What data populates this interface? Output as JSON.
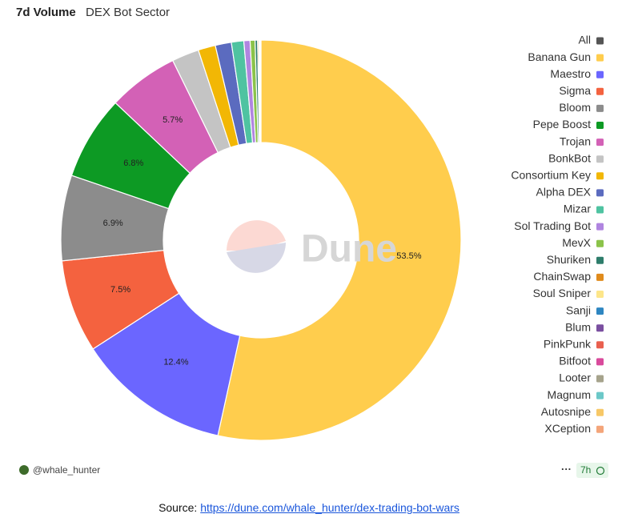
{
  "chart_data": {
    "type": "pie",
    "title": "7d Volume",
    "subtitle": "DEX Bot Sector",
    "watermark": "Dune",
    "author": "@whale_hunter",
    "age": "7h",
    "source_label": "Source:",
    "source_link": "https://dune.com/whale_hunter/dex-trading-bot-wars",
    "legend_all": {
      "name": "All",
      "color": "#555555"
    },
    "series": [
      {
        "name": "Banana Gun",
        "color": "#ffcd4d",
        "value": 53.5,
        "value_label": "53.5%"
      },
      {
        "name": "Maestro",
        "color": "#6b66ff",
        "value": 12.4,
        "value_label": "12.4%"
      },
      {
        "name": "Sigma",
        "color": "#f4623f",
        "value": 7.5,
        "value_label": "7.5%"
      },
      {
        "name": "Bloom",
        "color": "#8c8c8c",
        "value": 6.9,
        "value_label": "6.9%"
      },
      {
        "name": "Pepe Boost",
        "color": "#0d9a24",
        "value": 6.8,
        "value_label": "6.8%"
      },
      {
        "name": "Trojan",
        "color": "#d361b6",
        "value": 5.7,
        "value_label": "5.7%"
      },
      {
        "name": "BonkBot",
        "color": "#c4c4c4",
        "value": 2.2
      },
      {
        "name": "Consortium Key",
        "color": "#f2b705",
        "value": 1.4
      },
      {
        "name": "Alpha DEX",
        "color": "#5b6bbf",
        "value": 1.3
      },
      {
        "name": "Mizar",
        "color": "#4fc3a1",
        "value": 1.0
      },
      {
        "name": "Sol Trading Bot",
        "color": "#b085e0",
        "value": 0.5
      },
      {
        "name": "MevX",
        "color": "#8bc34a",
        "value": 0.4
      },
      {
        "name": "Shuriken",
        "color": "#2e7d6b",
        "value": 0.2
      },
      {
        "name": "ChainSwap",
        "color": "#e08b1c",
        "value": 0.1
      },
      {
        "name": "Soul Sniper",
        "color": "#fde68a",
        "value": 0.05
      },
      {
        "name": "Sanji",
        "color": "#2e86c1",
        "value": 0.03
      },
      {
        "name": "Blum",
        "color": "#7a4fa0",
        "value": 0.02
      },
      {
        "name": "PinkPunk",
        "color": "#e9604f",
        "value": 0.02
      },
      {
        "name": "Bitfoot",
        "color": "#d94a9c",
        "value": 0.01
      },
      {
        "name": "Looter",
        "color": "#a6a38c",
        "value": 0.01
      },
      {
        "name": "Magnum",
        "color": "#6cc8c8",
        "value": 0.01
      },
      {
        "name": "Autosnipe",
        "color": "#f7c867",
        "value": 0.01
      },
      {
        "name": "XCeption",
        "color": "#f4a57a",
        "value": 0.01
      }
    ]
  }
}
